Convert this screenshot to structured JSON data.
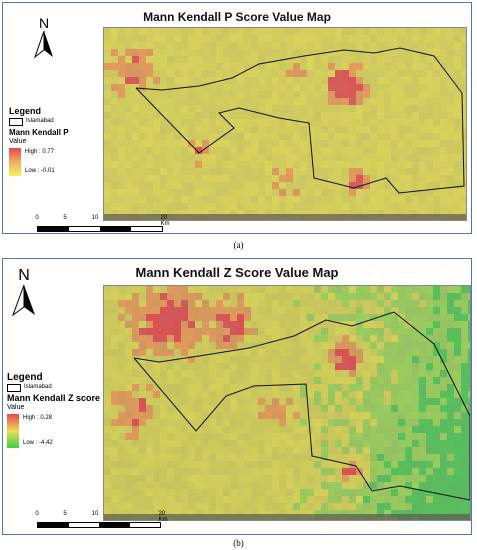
{
  "panels": [
    {
      "title": "Mann Kendall P Score Value Map",
      "north_label": "N",
      "legend": {
        "title": "Legend",
        "boundary_label": "Islamabad",
        "layer_name": "Mann Kendall P",
        "value_label": "Value",
        "high_label": "High : 0.77",
        "low_label": "Low : -0.01",
        "ramp_colors": [
          "#e8474f",
          "#f0b060",
          "#f4ee5a"
        ]
      },
      "scale": {
        "ticks": [
          "0",
          "5",
          "10",
          "20 Km"
        ]
      },
      "caption": "(a)"
    },
    {
      "title": "Mann Kendall Z Score Value Map",
      "north_label": "N",
      "legend": {
        "title": "Legend",
        "boundary_label": "Islamabad",
        "layer_name": "Mann Kendall Z score",
        "value_label": "Value",
        "high_label": "High : 0.28",
        "low_label": "Low : -4.42",
        "ramp_colors": [
          "#e8474f",
          "#e8dc50",
          "#3cd048"
        ]
      },
      "scale": {
        "ticks": [
          "0",
          "5",
          "10",
          "20 Km"
        ]
      },
      "caption": "(b)"
    }
  ]
}
